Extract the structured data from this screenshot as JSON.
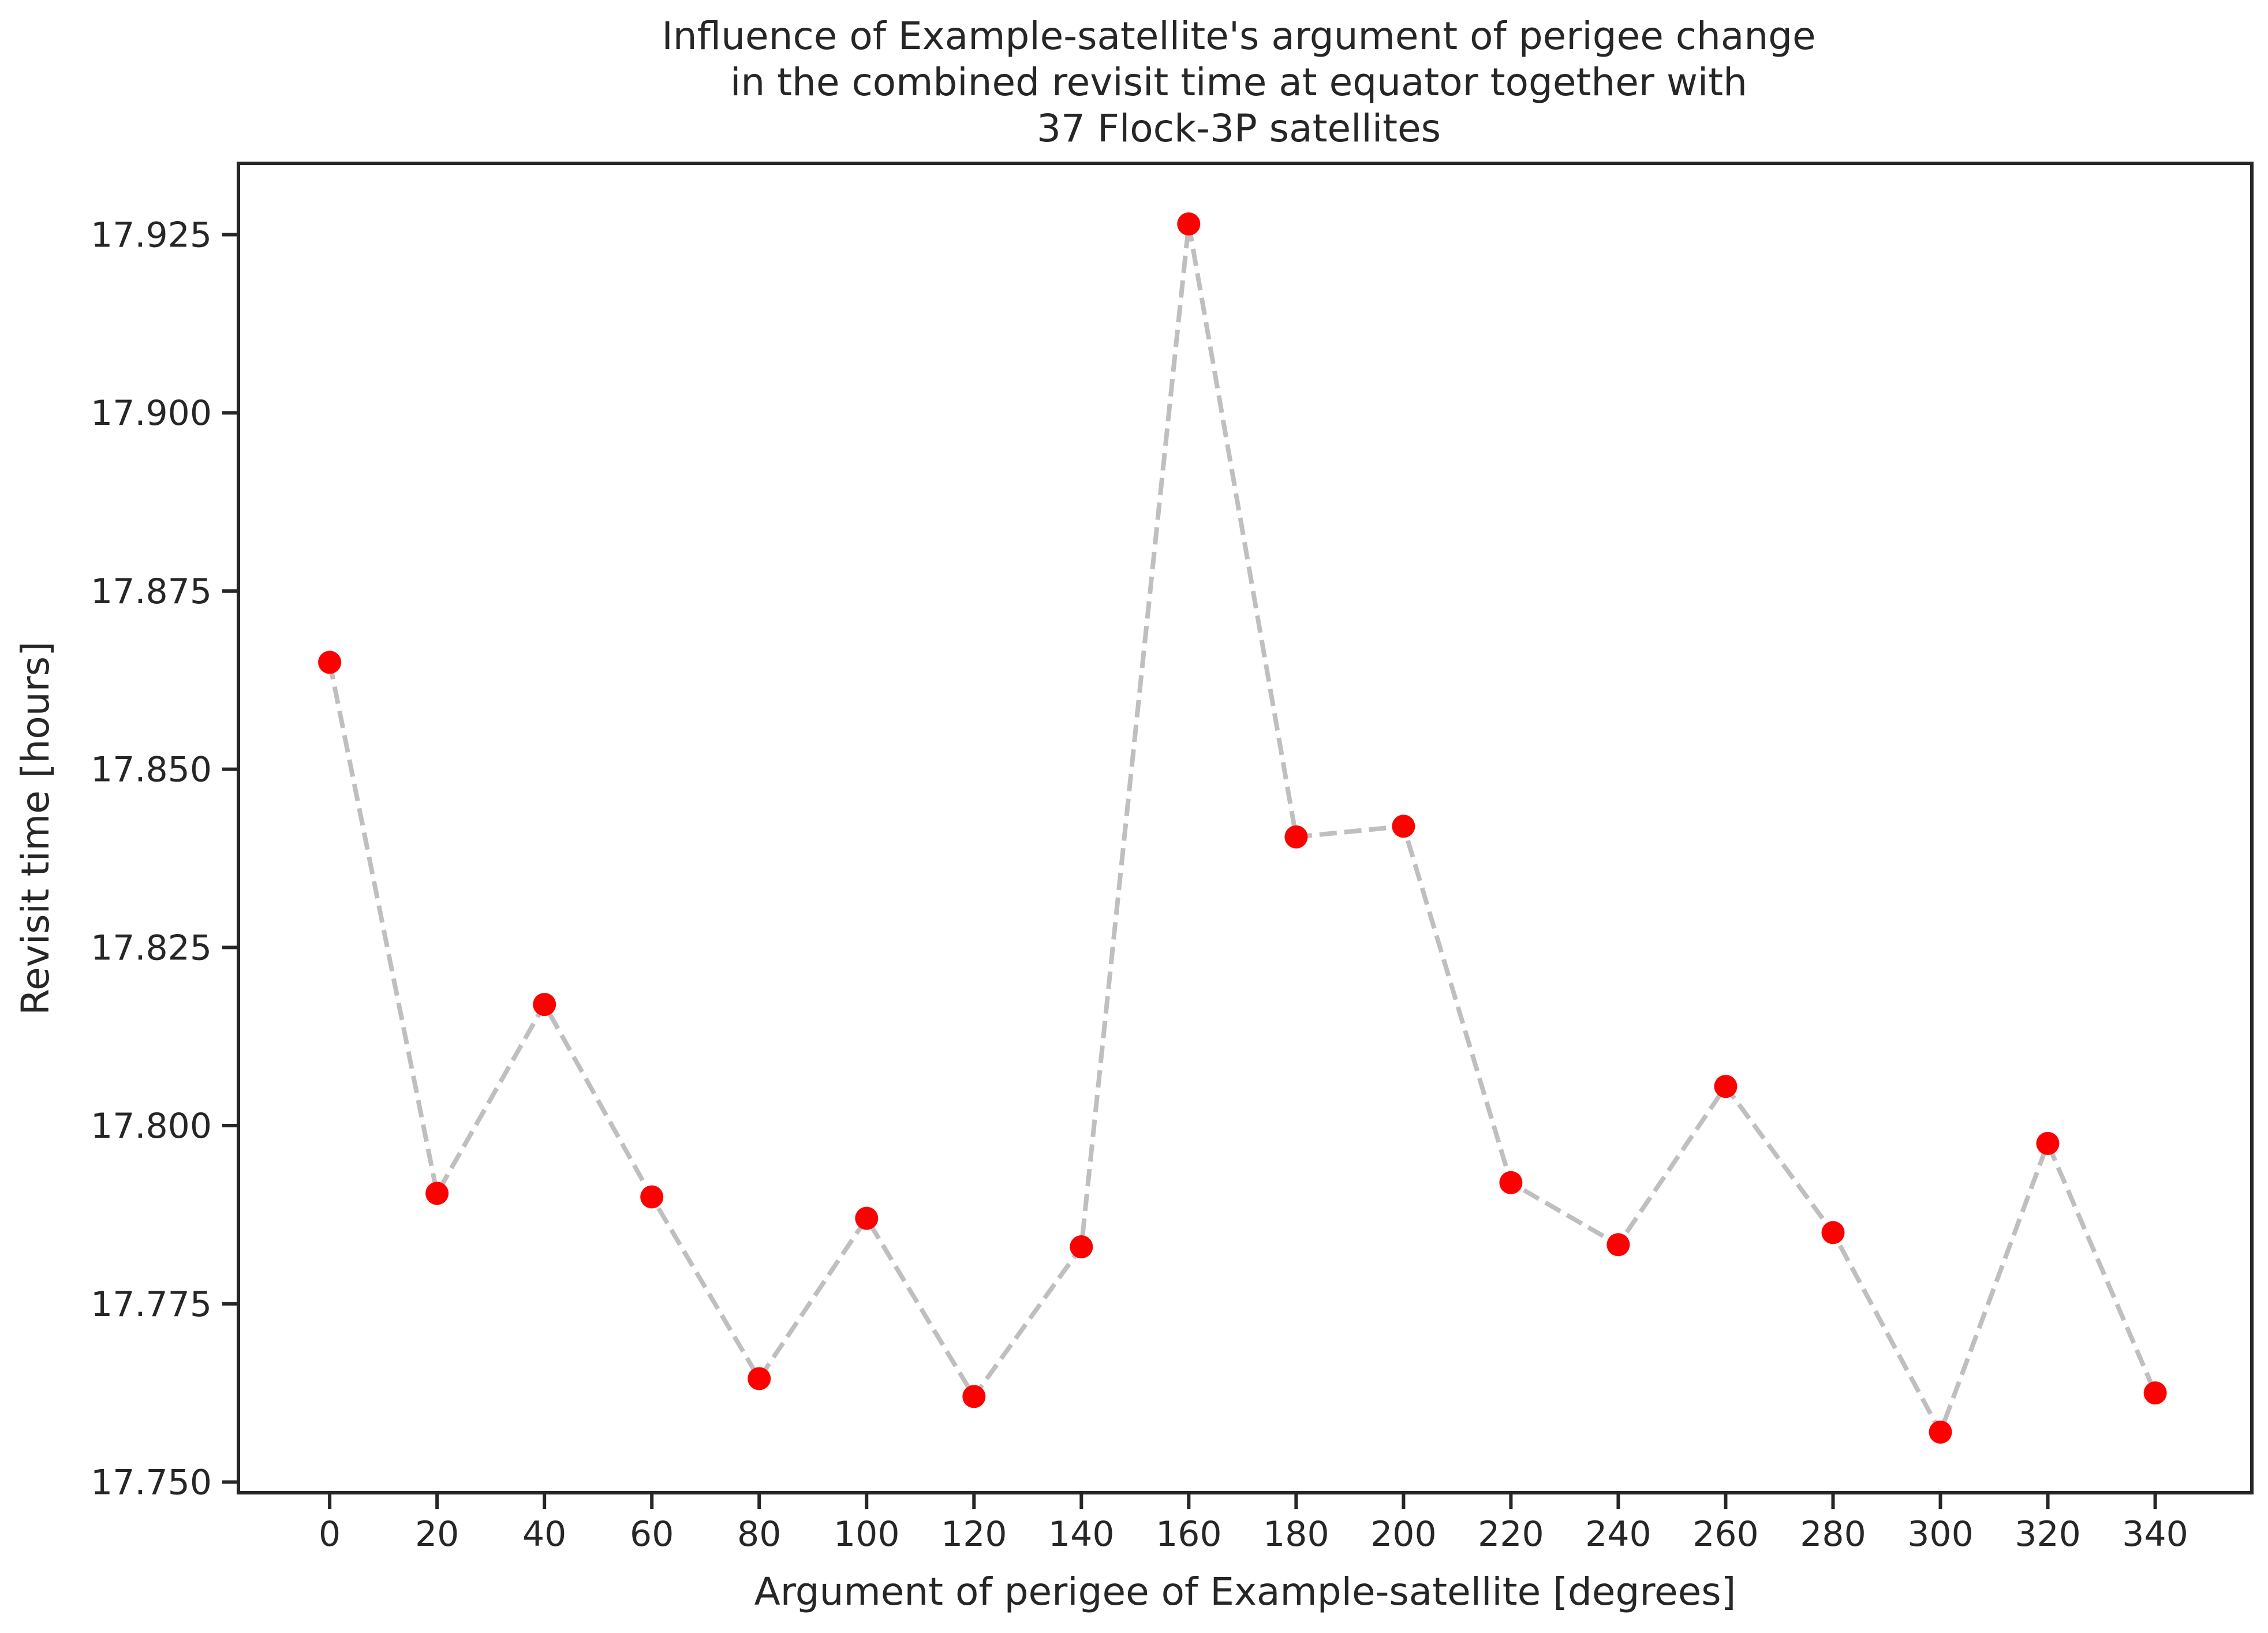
{
  "chart_data": {
    "type": "scatter",
    "title": "Influence of Example-satellite's argument of perigee change in the combined revisit time at equator together with 37 Flock-3P satellites",
    "title_lines": [
      "Influence of Example-satellite's argument of perigee change",
      "in the combined revisit time at equator together with",
      "37 Flock-3P satellites"
    ],
    "xlabel": "Argument of perigee of Example-satellite [degrees]",
    "ylabel": "Revisit time [hours]",
    "x": [
      0,
      20,
      40,
      60,
      80,
      100,
      120,
      140,
      160,
      180,
      200,
      220,
      240,
      260,
      280,
      300,
      320,
      340
    ],
    "y": [
      17.865,
      17.7905,
      17.817,
      17.79,
      17.7645,
      17.787,
      17.762,
      17.783,
      17.9265,
      17.8405,
      17.842,
      17.792,
      17.7833,
      17.8055,
      17.785,
      17.757,
      17.7975,
      17.7625
    ],
    "x_ticks": [
      0,
      20,
      40,
      60,
      80,
      100,
      120,
      140,
      160,
      180,
      200,
      220,
      240,
      260,
      280,
      300,
      320,
      340
    ],
    "x_tick_labels": [
      "0",
      "20",
      "40",
      "60",
      "80",
      "100",
      "120",
      "140",
      "160",
      "180",
      "200",
      "220",
      "240",
      "260",
      "280",
      "300",
      "320",
      "340"
    ],
    "y_ticks": [
      17.75,
      17.775,
      17.8,
      17.825,
      17.85,
      17.875,
      17.9,
      17.925
    ],
    "y_tick_labels": [
      "17.750",
      "17.775",
      "17.800",
      "17.825",
      "17.850",
      "17.875",
      "17.900",
      "17.925"
    ],
    "xlim": [
      -17,
      358
    ],
    "ylim": [
      17.7485,
      17.935
    ],
    "grid": false,
    "marker_color": "#ff0000",
    "line_color": "#bfbfbf",
    "line_style": "dashed"
  }
}
